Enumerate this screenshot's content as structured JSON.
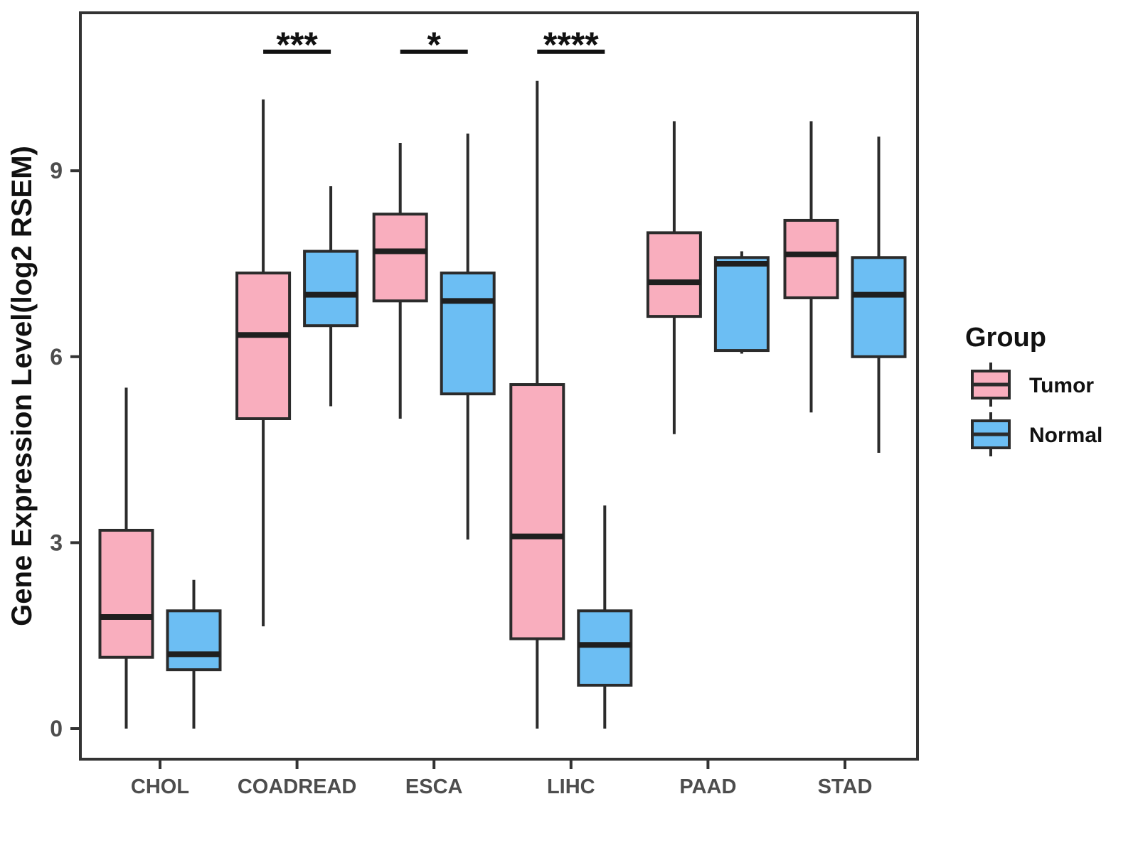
{
  "colors": {
    "tumor_fill": "#F9AEBE",
    "normal_fill": "#6CBEF3",
    "box_line": "#2B2B2B",
    "median_line": "#1F1F1F",
    "panel_border": "#333333",
    "axis_text": "#4D4D4D",
    "text": "#111111",
    "background": "#FFFFFF"
  },
  "chart_data": {
    "type": "boxplot",
    "title": "",
    "xlabel": "",
    "ylabel": "Gene Expression Level(log2 RSEM)",
    "ylim": [
      -0.5,
      11.55
    ],
    "yticks": [
      0,
      3,
      6,
      9
    ],
    "grid": false,
    "categories": [
      "CHOL",
      "COADREAD",
      "ESCA",
      "LIHC",
      "PAAD",
      "STAD"
    ],
    "legend": {
      "title": "Group",
      "position": "right",
      "entries": [
        {
          "name": "Tumor",
          "color": "#F9AEBE"
        },
        {
          "name": "Normal",
          "color": "#6CBEF3"
        }
      ]
    },
    "series": [
      {
        "name": "Tumor",
        "color": "#F9AEBE",
        "boxes": [
          {
            "category": "CHOL",
            "low": 0.0,
            "q1": 1.15,
            "median": 1.8,
            "q3": 3.2,
            "high": 5.5
          },
          {
            "category": "COADREAD",
            "low": 1.65,
            "q1": 5.0,
            "median": 6.35,
            "q3": 7.35,
            "high": 10.15
          },
          {
            "category": "ESCA",
            "low": 5.0,
            "q1": 6.9,
            "median": 7.7,
            "q3": 8.3,
            "high": 9.45
          },
          {
            "category": "LIHC",
            "low": 0.0,
            "q1": 1.45,
            "median": 3.1,
            "q3": 5.55,
            "high": 10.45
          },
          {
            "category": "PAAD",
            "low": 4.75,
            "q1": 6.65,
            "median": 7.2,
            "q3": 8.0,
            "high": 9.8
          },
          {
            "category": "STAD",
            "low": 5.1,
            "q1": 6.95,
            "median": 7.65,
            "q3": 8.2,
            "high": 9.8
          }
        ]
      },
      {
        "name": "Normal",
        "color": "#6CBEF3",
        "boxes": [
          {
            "category": "CHOL",
            "low": 0.0,
            "q1": 0.95,
            "median": 1.2,
            "q3": 1.9,
            "high": 2.4
          },
          {
            "category": "COADREAD",
            "low": 5.2,
            "q1": 6.5,
            "median": 7.0,
            "q3": 7.7,
            "high": 8.75
          },
          {
            "category": "ESCA",
            "low": 3.05,
            "q1": 5.4,
            "median": 6.9,
            "q3": 7.35,
            "high": 9.6
          },
          {
            "category": "LIHC",
            "low": 0.0,
            "q1": 0.7,
            "median": 1.35,
            "q3": 1.9,
            "high": 3.6
          },
          {
            "category": "PAAD",
            "low": 6.05,
            "q1": 6.1,
            "median": 7.5,
            "q3": 7.6,
            "high": 7.7
          },
          {
            "category": "STAD",
            "low": 4.45,
            "q1": 6.0,
            "median": 7.0,
            "q3": 7.6,
            "high": 9.55
          }
        ]
      }
    ],
    "significance": [
      {
        "category": "COADREAD",
        "label": "***"
      },
      {
        "category": "ESCA",
        "label": "*"
      },
      {
        "category": "LIHC",
        "label": "****"
      }
    ],
    "significance_bar_value": 10.92
  }
}
